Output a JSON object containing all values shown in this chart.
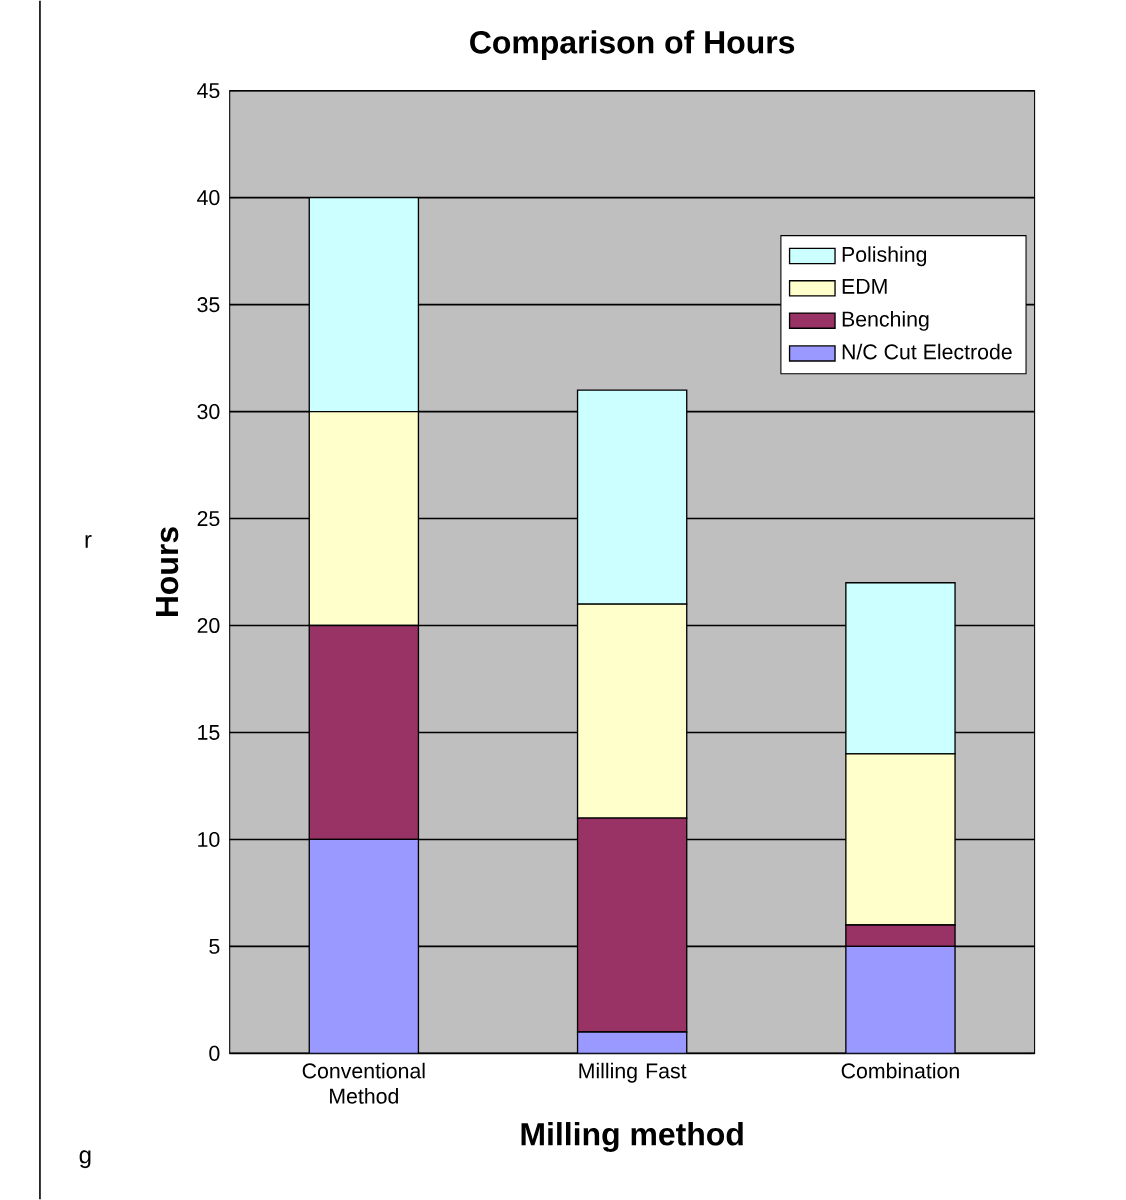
{
  "chart_data": {
    "type": "bar",
    "stacked": true,
    "title": "Comparison of Hours",
    "xlabel": "Milling method",
    "ylabel": "Hours",
    "categories": [
      "Conventional Method",
      "Milling Fast",
      "Combination"
    ],
    "series": [
      {
        "name": "N/C Cut Electrode",
        "color": "#9999ff",
        "values": [
          10,
          1,
          5
        ]
      },
      {
        "name": "Benching",
        "color": "#993366",
        "values": [
          10,
          10,
          1
        ]
      },
      {
        "name": "EDM",
        "color": "#ffffcc",
        "values": [
          10,
          10,
          8
        ]
      },
      {
        "name": "Polishing",
        "color": "#ccffff",
        "values": [
          10,
          10,
          8
        ]
      }
    ],
    "ylim": [
      0,
      45
    ],
    "yticks": [
      0,
      5,
      10,
      15,
      20,
      25,
      30,
      35,
      40,
      45
    ],
    "grid": "y",
    "legend": "top right",
    "annotations": [
      "r",
      "g"
    ]
  }
}
